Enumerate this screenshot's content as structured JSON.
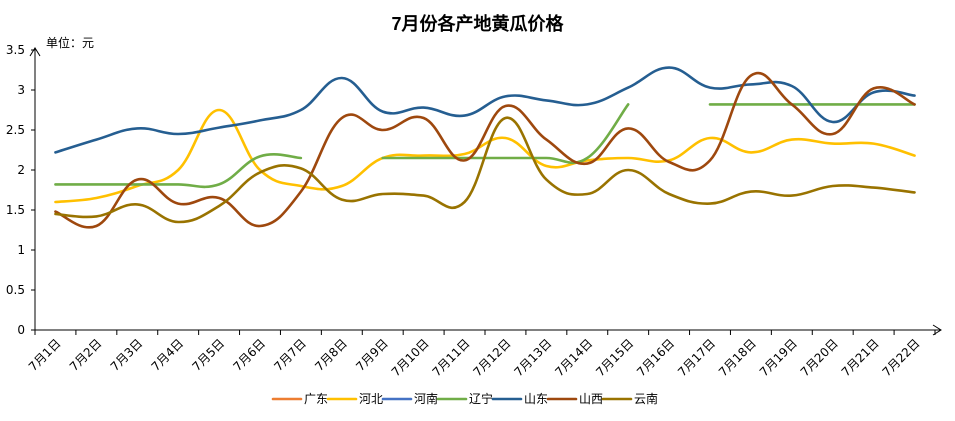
{
  "chart_data": {
    "type": "line",
    "title": "7月份各产地黄瓜价格",
    "ylabel": "单位：元",
    "xlabel": "",
    "ylim": [
      0,
      3.5
    ],
    "yticks": [
      "0",
      "0.5",
      "1",
      "1.5",
      "2",
      "2.5",
      "3",
      "3.5"
    ],
    "categories": [
      "7月1日",
      "7月2日",
      "7月3日",
      "7月4日",
      "7月5日",
      "7月6日",
      "7月7日",
      "7月8日",
      "7月9日",
      "7月10日",
      "7月11日",
      "7月12日",
      "7月13日",
      "7月14日",
      "7月15日",
      "7月16日",
      "7月17日",
      "7月18日",
      "7月19日",
      "7月20日",
      "7月21日",
      "7月22日"
    ],
    "legend_position": "bottom",
    "series": [
      {
        "name": "广东",
        "color": "#ED7D31",
        "values": [
          null,
          null,
          null,
          null,
          null,
          null,
          null,
          null,
          null,
          null,
          null,
          null,
          null,
          null,
          null,
          null,
          null,
          null,
          null,
          null,
          null,
          null
        ]
      },
      {
        "name": "河北",
        "color": "#FFC000",
        "values": [
          1.6,
          1.65,
          1.8,
          2.0,
          2.75,
          2.0,
          1.8,
          1.8,
          2.15,
          2.18,
          2.2,
          2.4,
          2.05,
          2.12,
          2.15,
          2.12,
          2.4,
          2.22,
          2.38,
          2.33,
          2.33,
          2.18
        ]
      },
      {
        "name": "河南",
        "color": "#4472C4",
        "values": [
          null,
          null,
          null,
          null,
          null,
          null,
          null,
          null,
          null,
          null,
          null,
          null,
          null,
          null,
          null,
          null,
          null,
          null,
          null,
          null,
          null,
          null
        ]
      },
      {
        "name": "辽宁",
        "color": "#70AD47",
        "values": [
          1.82,
          1.82,
          1.82,
          1.82,
          1.82,
          2.17,
          2.15,
          null,
          2.15,
          2.15,
          2.15,
          2.15,
          2.15,
          2.15,
          2.82,
          null,
          2.82,
          2.82,
          2.82,
          2.82,
          2.82,
          2.82
        ]
      },
      {
        "name": "山东",
        "color": "#255E91",
        "values": [
          2.22,
          2.38,
          2.52,
          2.45,
          2.53,
          2.62,
          2.75,
          3.15,
          2.73,
          2.78,
          2.68,
          2.92,
          2.87,
          2.82,
          3.03,
          3.28,
          3.03,
          3.07,
          3.05,
          2.6,
          2.97,
          2.93
        ]
      },
      {
        "name": "山西",
        "color": "#9E480E",
        "values": [
          1.48,
          1.3,
          1.88,
          1.58,
          1.65,
          1.3,
          1.73,
          2.65,
          2.5,
          2.65,
          2.12,
          2.8,
          2.38,
          2.08,
          2.52,
          2.1,
          2.12,
          3.18,
          2.82,
          2.45,
          3.02,
          2.82
        ]
      },
      {
        "name": "云南",
        "color": "#997300",
        "values": [
          1.45,
          1.42,
          1.57,
          1.35,
          1.55,
          1.97,
          2.02,
          1.63,
          1.7,
          1.68,
          1.6,
          2.65,
          1.88,
          1.7,
          2.0,
          1.7,
          1.58,
          1.73,
          1.68,
          1.8,
          1.78,
          1.72
        ]
      }
    ]
  }
}
